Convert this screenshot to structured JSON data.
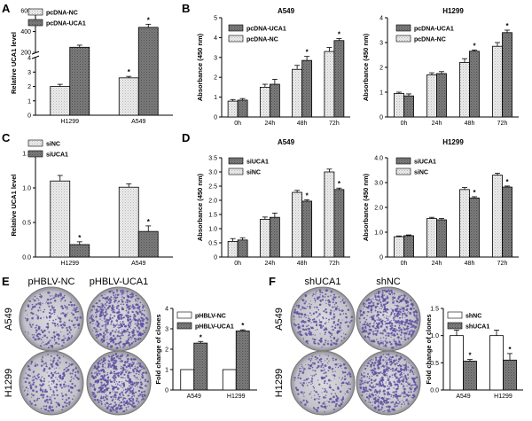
{
  "colors": {
    "light": "#e4e4e4",
    "dark": "#6f6f6f",
    "white": "#ffffff",
    "dish": "#c9c7cf",
    "colony": "#5a4fa0"
  },
  "panel_letters": [
    "A",
    "B",
    "C",
    "D",
    "E",
    "F"
  ],
  "photo_labels": {
    "E": {
      "cols": [
        "pHBLV-NC",
        "pHBLV-UCA1"
      ],
      "rows": [
        "A549",
        "H1299"
      ]
    },
    "F": {
      "cols": [
        "shUCA1",
        "shNC"
      ],
      "rows": [
        "A549",
        "H1299"
      ]
    }
  },
  "chart_data": [
    {
      "id": "A",
      "type": "bar",
      "title": "",
      "xlabel": "",
      "ylabel": "Relative UCA1 level",
      "categories": [
        "H1299",
        "A549"
      ],
      "ylim": [
        0,
        500
      ],
      "yticks": [
        "0",
        "1",
        "2",
        "3",
        "4",
        "200",
        "400",
        "600"
      ],
      "axis_break": true,
      "series": [
        {
          "name": "pcDNA-NC",
          "color": "light",
          "values": [
            2.0,
            2.6
          ],
          "errors": [
            0.15,
            0.1
          ]
        },
        {
          "name": "pcDNA-UCA1",
          "color": "dark",
          "values": [
            250,
            440
          ],
          "errors": [
            20,
            30
          ]
        }
      ],
      "significance": [
        [
          false,
          true
        ],
        [
          false,
          true
        ]
      ]
    },
    {
      "id": "B1",
      "type": "bar",
      "title": "A549",
      "xlabel": "",
      "ylabel": "Absorbance (450 nm)",
      "categories": [
        "0h",
        "24h",
        "48h",
        "72h"
      ],
      "ylim": [
        0,
        5
      ],
      "yticks": [
        "0",
        "1",
        "2",
        "3",
        "4",
        "5"
      ],
      "series": [
        {
          "name": "pcDNA-NC",
          "color": "light",
          "values": [
            0.8,
            1.5,
            2.4,
            3.3
          ],
          "errors": [
            0.08,
            0.15,
            0.2,
            0.2
          ]
        },
        {
          "name": "pcDNA-UCA1",
          "color": "dark",
          "values": [
            0.85,
            1.65,
            2.85,
            3.85
          ],
          "errors": [
            0.08,
            0.25,
            0.2,
            0.1
          ]
        }
      ],
      "legend_order": [
        1,
        0
      ],
      "significance": [
        [
          false,
          false,
          false,
          false
        ],
        [
          false,
          false,
          true,
          true
        ]
      ]
    },
    {
      "id": "B2",
      "type": "bar",
      "title": "H1299",
      "xlabel": "",
      "ylabel": "Absorbance (450 nm)",
      "categories": [
        "0h",
        "24h",
        "48h",
        "72h"
      ],
      "ylim": [
        0,
        4
      ],
      "yticks": [
        "0",
        "1",
        "2",
        "3",
        "4"
      ],
      "series": [
        {
          "name": "pcDNA-NC",
          "color": "light",
          "values": [
            0.95,
            1.7,
            2.2,
            2.85
          ],
          "errors": [
            0.05,
            0.08,
            0.15,
            0.15
          ]
        },
        {
          "name": "pcDNA-UCA1",
          "color": "dark",
          "values": [
            0.85,
            1.75,
            2.65,
            3.4
          ],
          "errors": [
            0.08,
            0.08,
            0.05,
            0.1
          ]
        }
      ],
      "legend_order": [
        1,
        0
      ],
      "significance": [
        [
          false,
          false,
          false,
          false
        ],
        [
          false,
          false,
          true,
          true
        ]
      ]
    },
    {
      "id": "C",
      "type": "bar",
      "title": "",
      "xlabel": "",
      "ylabel": "Relative UCA1 level",
      "categories": [
        "H1299",
        "A549"
      ],
      "ylim": [
        0,
        1.5
      ],
      "yticks": [
        "0.0",
        "0.5",
        "1.0",
        "1.5"
      ],
      "series": [
        {
          "name": "siNC",
          "color": "light",
          "values": [
            1.1,
            1.01
          ],
          "errors": [
            0.08,
            0.05
          ]
        },
        {
          "name": "siUCA1",
          "color": "dark",
          "values": [
            0.18,
            0.37
          ],
          "errors": [
            0.04,
            0.08
          ]
        }
      ],
      "significance": [
        [
          false,
          false
        ],
        [
          true,
          true
        ]
      ]
    },
    {
      "id": "D1",
      "type": "bar",
      "title": "A549",
      "xlabel": "",
      "ylabel": "Absorbance (450 nm)",
      "categories": [
        "0h",
        "24h",
        "48h",
        "72h"
      ],
      "ylim": [
        0,
        3.5
      ],
      "yticks": [
        "0",
        "0.5",
        "1.0",
        "1.5",
        "2.0",
        "2.5",
        "3.0",
        "3.5"
      ],
      "series": [
        {
          "name": "siNC",
          "color": "light",
          "values": [
            0.55,
            1.33,
            2.28,
            3.0
          ],
          "errors": [
            0.1,
            0.08,
            0.07,
            0.1
          ]
        },
        {
          "name": "siUCA1",
          "color": "dark",
          "values": [
            0.6,
            1.4,
            1.97,
            2.38
          ],
          "errors": [
            0.08,
            0.15,
            0.05,
            0.05
          ]
        }
      ],
      "legend_order": [
        1,
        0
      ],
      "significance": [
        [
          false,
          false,
          false,
          false
        ],
        [
          false,
          false,
          true,
          true
        ]
      ]
    },
    {
      "id": "D2",
      "type": "bar",
      "title": "H1299",
      "xlabel": "",
      "ylabel": "Absorbance (450 nm)",
      "categories": [
        "0h",
        "24h",
        "48h",
        "72h"
      ],
      "ylim": [
        0,
        4
      ],
      "yticks": [
        "0",
        "1.0",
        "2.0",
        "3.0",
        "4.0"
      ],
      "series": [
        {
          "name": "siNC",
          "color": "light",
          "values": [
            0.82,
            1.55,
            2.72,
            3.3
          ],
          "errors": [
            0.03,
            0.05,
            0.08,
            0.08
          ]
        },
        {
          "name": "siUCA1",
          "color": "dark",
          "values": [
            0.86,
            1.5,
            2.38,
            2.82
          ],
          "errors": [
            0.03,
            0.05,
            0.05,
            0.04
          ]
        }
      ],
      "legend_order": [
        1,
        0
      ],
      "significance": [
        [
          false,
          false,
          false,
          false
        ],
        [
          false,
          false,
          true,
          true
        ]
      ]
    },
    {
      "id": "E",
      "type": "bar",
      "title": "",
      "xlabel": "",
      "ylabel": "Fold change of clones",
      "categories": [
        "A549",
        "H1299"
      ],
      "ylim": [
        0,
        4
      ],
      "yticks": [
        "0",
        "1",
        "2",
        "3",
        "4"
      ],
      "series": [
        {
          "name": "pHBLV-NC",
          "color": "white",
          "values": [
            1.0,
            1.0
          ],
          "errors": [
            0,
            0
          ]
        },
        {
          "name": "pHBLV-UCA1",
          "color": "dark",
          "values": [
            2.3,
            2.9
          ],
          "errors": [
            0.08,
            0.05
          ]
        }
      ],
      "significance": [
        [
          false,
          false
        ],
        [
          true,
          true
        ]
      ]
    },
    {
      "id": "F",
      "type": "bar",
      "title": "",
      "xlabel": "",
      "ylabel": "Fold change of clones",
      "categories": [
        "A549",
        "H1299"
      ],
      "ylim": [
        0,
        1.5
      ],
      "yticks": [
        "0.0",
        "0.5",
        "1.0",
        "1.5"
      ],
      "series": [
        {
          "name": "shNC",
          "color": "white",
          "values": [
            1.0,
            1.0
          ],
          "errors": [
            0.1,
            0.1
          ]
        },
        {
          "name": "shUCA1",
          "color": "dark",
          "values": [
            0.53,
            0.55
          ],
          "errors": [
            0.03,
            0.12
          ]
        }
      ],
      "significance": [
        [
          false,
          false
        ],
        [
          true,
          true
        ]
      ]
    }
  ]
}
